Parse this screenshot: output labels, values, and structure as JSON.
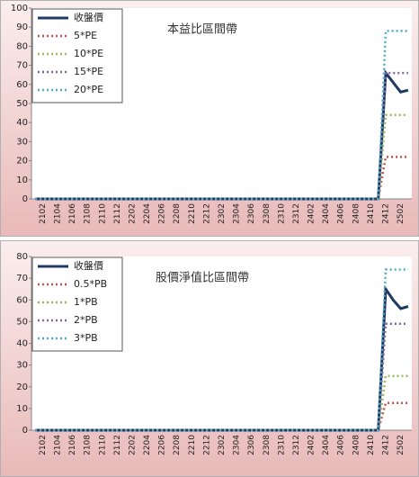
{
  "chart_data": [
    {
      "type": "line",
      "title": "本益比區間帶",
      "categories": [
        null,
        "2102",
        null,
        "2104",
        null,
        "2106",
        null,
        "2108",
        null,
        "2110",
        null,
        "2112",
        null,
        "2202",
        null,
        "2204",
        null,
        "2206",
        null,
        "2208",
        null,
        "2210",
        null,
        "2212",
        null,
        "2302",
        null,
        "2304",
        null,
        "2306",
        null,
        "2308",
        null,
        "2310",
        null,
        "2312",
        null,
        "2402",
        null,
        "2404",
        null,
        "2406",
        null,
        "2408",
        null,
        "2410",
        null,
        "2412",
        null,
        "2502",
        null
      ],
      "series": [
        {
          "name": "收盤價",
          "color": "#1f3864",
          "style": "solid",
          "values": [
            0,
            0,
            0,
            0,
            0,
            0,
            0,
            0,
            0,
            0,
            0,
            0,
            0,
            0,
            0,
            0,
            0,
            0,
            0,
            0,
            0,
            0,
            0,
            0,
            0,
            0,
            0,
            0,
            0,
            0,
            0,
            0,
            0,
            0,
            0,
            0,
            0,
            0,
            0,
            0,
            0,
            0,
            0,
            0,
            0,
            0,
            0,
            66,
            61,
            56,
            57
          ]
        },
        {
          "name": "5*PE",
          "color": "#c0504d",
          "style": "dotted",
          "values": [
            0,
            0,
            0,
            0,
            0,
            0,
            0,
            0,
            0,
            0,
            0,
            0,
            0,
            0,
            0,
            0,
            0,
            0,
            0,
            0,
            0,
            0,
            0,
            0,
            0,
            0,
            0,
            0,
            0,
            0,
            0,
            0,
            0,
            0,
            0,
            0,
            0,
            0,
            0,
            0,
            0,
            0,
            0,
            0,
            0,
            0,
            0,
            22,
            22,
            22,
            22
          ]
        },
        {
          "name": "10*PE",
          "color": "#9bbb59",
          "style": "dotted",
          "values": [
            0,
            0,
            0,
            0,
            0,
            0,
            0,
            0,
            0,
            0,
            0,
            0,
            0,
            0,
            0,
            0,
            0,
            0,
            0,
            0,
            0,
            0,
            0,
            0,
            0,
            0,
            0,
            0,
            0,
            0,
            0,
            0,
            0,
            0,
            0,
            0,
            0,
            0,
            0,
            0,
            0,
            0,
            0,
            0,
            0,
            0,
            0,
            44,
            44,
            44,
            44
          ]
        },
        {
          "name": "15*PE",
          "color": "#8064a2",
          "style": "dotted",
          "values": [
            0,
            0,
            0,
            0,
            0,
            0,
            0,
            0,
            0,
            0,
            0,
            0,
            0,
            0,
            0,
            0,
            0,
            0,
            0,
            0,
            0,
            0,
            0,
            0,
            0,
            0,
            0,
            0,
            0,
            0,
            0,
            0,
            0,
            0,
            0,
            0,
            0,
            0,
            0,
            0,
            0,
            0,
            0,
            0,
            0,
            0,
            0,
            66,
            66,
            66,
            66
          ]
        },
        {
          "name": "20*PE",
          "color": "#4bacc6",
          "style": "dotted",
          "values": [
            0,
            0,
            0,
            0,
            0,
            0,
            0,
            0,
            0,
            0,
            0,
            0,
            0,
            0,
            0,
            0,
            0,
            0,
            0,
            0,
            0,
            0,
            0,
            0,
            0,
            0,
            0,
            0,
            0,
            0,
            0,
            0,
            0,
            0,
            0,
            0,
            0,
            0,
            0,
            0,
            0,
            0,
            0,
            0,
            0,
            0,
            0,
            88,
            88,
            88,
            88
          ]
        }
      ],
      "ylim": [
        0,
        100
      ],
      "yticks": [
        0,
        10,
        20,
        30,
        40,
        50,
        60,
        70,
        80,
        90,
        100
      ],
      "grid": false,
      "legend": "top-left"
    },
    {
      "type": "line",
      "title": "股價淨值比區間帶",
      "categories": [
        null,
        "2102",
        null,
        "2104",
        null,
        "2106",
        null,
        "2108",
        null,
        "2110",
        null,
        "2112",
        null,
        "2202",
        null,
        "2204",
        null,
        "2206",
        null,
        "2208",
        null,
        "2210",
        null,
        "2212",
        null,
        "2302",
        null,
        "2304",
        null,
        "2306",
        null,
        "2308",
        null,
        "2310",
        null,
        "2312",
        null,
        "2402",
        null,
        "2404",
        null,
        "2406",
        null,
        "2408",
        null,
        "2410",
        null,
        "2412",
        null,
        "2502",
        null
      ],
      "series": [
        {
          "name": "收盤價",
          "color": "#1f3864",
          "style": "solid",
          "values": [
            0,
            0,
            0,
            0,
            0,
            0,
            0,
            0,
            0,
            0,
            0,
            0,
            0,
            0,
            0,
            0,
            0,
            0,
            0,
            0,
            0,
            0,
            0,
            0,
            0,
            0,
            0,
            0,
            0,
            0,
            0,
            0,
            0,
            0,
            0,
            0,
            0,
            0,
            0,
            0,
            0,
            0,
            0,
            0,
            0,
            0,
            0,
            65,
            60,
            56,
            57
          ]
        },
        {
          "name": "0.5*PB",
          "color": "#c0504d",
          "style": "dotted",
          "values": [
            0,
            0,
            0,
            0,
            0,
            0,
            0,
            0,
            0,
            0,
            0,
            0,
            0,
            0,
            0,
            0,
            0,
            0,
            0,
            0,
            0,
            0,
            0,
            0,
            0,
            0,
            0,
            0,
            0,
            0,
            0,
            0,
            0,
            0,
            0,
            0,
            0,
            0,
            0,
            0,
            0,
            0,
            0,
            0,
            0,
            0,
            0,
            12.5,
            12.5,
            12.5,
            12.5
          ]
        },
        {
          "name": "1*PB",
          "color": "#9bbb59",
          "style": "dotted",
          "values": [
            0,
            0,
            0,
            0,
            0,
            0,
            0,
            0,
            0,
            0,
            0,
            0,
            0,
            0,
            0,
            0,
            0,
            0,
            0,
            0,
            0,
            0,
            0,
            0,
            0,
            0,
            0,
            0,
            0,
            0,
            0,
            0,
            0,
            0,
            0,
            0,
            0,
            0,
            0,
            0,
            0,
            0,
            0,
            0,
            0,
            0,
            0,
            25,
            25,
            25,
            25
          ]
        },
        {
          "name": "2*PB",
          "color": "#8064a2",
          "style": "dotted",
          "values": [
            0,
            0,
            0,
            0,
            0,
            0,
            0,
            0,
            0,
            0,
            0,
            0,
            0,
            0,
            0,
            0,
            0,
            0,
            0,
            0,
            0,
            0,
            0,
            0,
            0,
            0,
            0,
            0,
            0,
            0,
            0,
            0,
            0,
            0,
            0,
            0,
            0,
            0,
            0,
            0,
            0,
            0,
            0,
            0,
            0,
            0,
            0,
            49,
            49,
            49,
            49
          ]
        },
        {
          "name": "3*PB",
          "color": "#4bacc6",
          "style": "dotted",
          "values": [
            0,
            0,
            0,
            0,
            0,
            0,
            0,
            0,
            0,
            0,
            0,
            0,
            0,
            0,
            0,
            0,
            0,
            0,
            0,
            0,
            0,
            0,
            0,
            0,
            0,
            0,
            0,
            0,
            0,
            0,
            0,
            0,
            0,
            0,
            0,
            0,
            0,
            0,
            0,
            0,
            0,
            0,
            0,
            0,
            0,
            0,
            0,
            74,
            74,
            74,
            74
          ]
        }
      ],
      "ylim": [
        0,
        80
      ],
      "yticks": [
        0,
        10,
        20,
        30,
        40,
        50,
        60,
        70,
        80
      ],
      "grid": false,
      "legend": "top-left"
    }
  ]
}
